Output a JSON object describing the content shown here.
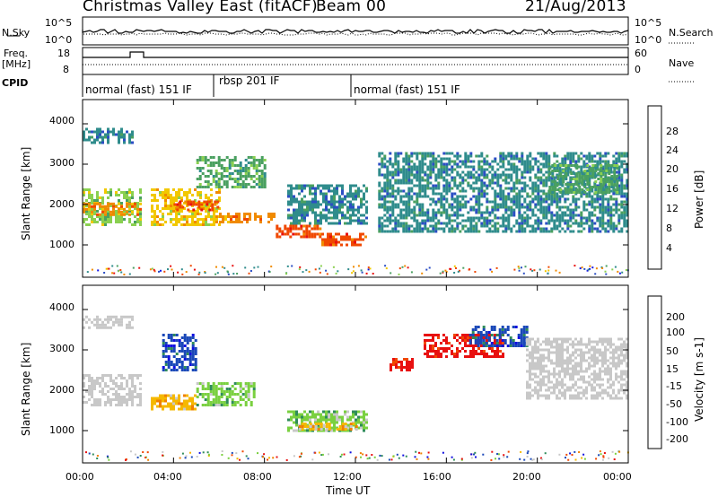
{
  "header": {
    "title": "Christmas Valley East (fitACF)",
    "beam": "Beam 00",
    "date": "21/Aug/2013"
  },
  "top_panels": {
    "nsky_label": "N.Sky",
    "nsearch_label": "N.Search",
    "freq_label_1": "Freq.",
    "freq_label_2": "[MHz]",
    "nave_label": "Nave",
    "cpid_label": "CPID",
    "nsky_ticks": [
      "10^5",
      "10^0"
    ],
    "nsearch_ticks": [
      "10^5",
      "10^0"
    ],
    "freq_ticks": [
      "18",
      "8"
    ],
    "nave_ticks": [
      "60",
      "0"
    ],
    "cpid_segments": [
      "normal (fast) 151 IF",
      "rbsp 201 IF",
      "normal (fast) 151 IF"
    ]
  },
  "colors": {
    "power_scale": [
      "#1414e6",
      "#2b4ec4",
      "#2f8c8c",
      "#4aa060",
      "#8ad050",
      "#f2c800",
      "#f08a00",
      "#f04800",
      "#e81010"
    ],
    "velocity_scale": [
      "#1010e0",
      "#1a48b8",
      "#2f8c5a",
      "#7ad040",
      "#c8c8c8",
      "#f5b800",
      "#f08000",
      "#f04800",
      "#e81010"
    ],
    "ground_scatter": "#c8c8c8"
  },
  "chart_data": [
    {
      "type": "heatmap",
      "name": "power",
      "xlabel": "",
      "ylabel": "Slant Range [km]",
      "xlim": [
        0,
        24
      ],
      "ylim": [
        200,
        4600
      ],
      "yticks": [
        "1000",
        "2000",
        "3000",
        "4000"
      ],
      "colorbar": {
        "label": "Power [dB]",
        "ticks": [
          "4",
          "8",
          "12",
          "16",
          "20",
          "24",
          "28"
        ],
        "range": [
          0,
          30
        ]
      },
      "features": [
        {
          "t_start": 0.0,
          "t_end": 2.5,
          "r_start": 1500,
          "r_end": 2400,
          "value": 14
        },
        {
          "t_start": 0.0,
          "t_end": 2.5,
          "r_start": 1750,
          "r_end": 2050,
          "value": 24
        },
        {
          "t_start": 0.0,
          "t_end": 2.2,
          "r_start": 3550,
          "r_end": 3900,
          "value": 8
        },
        {
          "t_start": 3.0,
          "t_end": 6.0,
          "r_start": 1500,
          "r_end": 2400,
          "value": 18
        },
        {
          "t_start": 4.0,
          "t_end": 6.0,
          "r_start": 1850,
          "r_end": 2100,
          "value": 26
        },
        {
          "t_start": 5.0,
          "t_end": 8.0,
          "r_start": 2400,
          "r_end": 3200,
          "value": 12
        },
        {
          "t_start": 6.0,
          "t_end": 8.5,
          "r_start": 1550,
          "r_end": 1800,
          "value": 24
        },
        {
          "t_start": 8.5,
          "t_end": 10.5,
          "r_start": 1200,
          "r_end": 1500,
          "value": 26
        },
        {
          "t_start": 10.5,
          "t_end": 12.5,
          "r_start": 1000,
          "r_end": 1300,
          "value": 25
        },
        {
          "t_start": 9.0,
          "t_end": 12.5,
          "r_start": 1500,
          "r_end": 2500,
          "value": 6
        },
        {
          "t_start": 13.0,
          "t_end": 24.0,
          "r_start": 1300,
          "r_end": 3300,
          "value": 6
        },
        {
          "t_start": 20.5,
          "t_end": 23.5,
          "r_start": 2300,
          "r_end": 3000,
          "value": 10
        }
      ]
    },
    {
      "type": "heatmap",
      "name": "velocity",
      "xlabel": "Time UT",
      "ylabel": "Slant Range [km]",
      "xlim": [
        0,
        24
      ],
      "ylim": [
        200,
        4600
      ],
      "xticks": [
        "00:00",
        "04:00",
        "08:00",
        "12:00",
        "16:00",
        "20:00",
        "00:00"
      ],
      "yticks": [
        "1000",
        "2000",
        "3000",
        "4000"
      ],
      "colorbar": {
        "label": "Velocity [m s-1]",
        "ticks": [
          "200",
          "100",
          "50",
          "15",
          "-15",
          "-50",
          "-100",
          "-200"
        ],
        "range": [
          -250,
          250
        ]
      },
      "features": [
        {
          "t_start": 0.0,
          "t_end": 2.5,
          "r_start": 1600,
          "r_end": 2400,
          "value": 0,
          "ground_scatter": true
        },
        {
          "t_start": 0.0,
          "t_end": 2.2,
          "r_start": 3550,
          "r_end": 3850,
          "value": 0,
          "ground_scatter": true
        },
        {
          "t_start": 3.0,
          "t_end": 5.0,
          "r_start": 1500,
          "r_end": 1900,
          "value": -80
        },
        {
          "t_start": 3.5,
          "t_end": 5.0,
          "r_start": 2500,
          "r_end": 3400,
          "value": 200
        },
        {
          "t_start": 5.0,
          "t_end": 7.5,
          "r_start": 1600,
          "r_end": 2200,
          "value": 40
        },
        {
          "t_start": 9.0,
          "t_end": 12.5,
          "r_start": 1000,
          "r_end": 1500,
          "value": 40
        },
        {
          "t_start": 9.5,
          "t_end": 12.0,
          "r_start": 1000,
          "r_end": 1200,
          "value": -80
        },
        {
          "t_start": 13.5,
          "t_end": 14.5,
          "r_start": 2500,
          "r_end": 2800,
          "value": -220
        },
        {
          "t_start": 15.0,
          "t_end": 18.5,
          "r_start": 2800,
          "r_end": 3400,
          "value": -220
        },
        {
          "t_start": 17.0,
          "t_end": 19.5,
          "r_start": 3100,
          "r_end": 3600,
          "value": 180
        },
        {
          "t_start": 19.5,
          "t_end": 24.0,
          "r_start": 1800,
          "r_end": 3300,
          "value": 0,
          "ground_scatter": true
        }
      ]
    }
  ]
}
